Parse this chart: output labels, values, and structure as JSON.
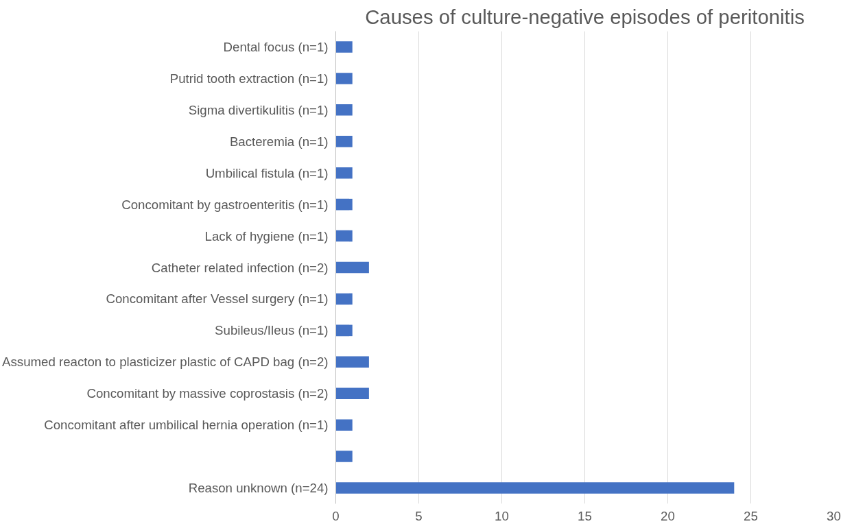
{
  "chart_data": {
    "type": "bar",
    "orientation": "horizontal",
    "title": "Causes of culture-negative episodes of peritonitis",
    "categories": [
      "Dental focus (n=1)",
      "Putrid tooth extraction (n=1)",
      "Sigma divertikulitis (n=1)",
      "Bacteremia (n=1)",
      "Umbilical fistula (n=1)",
      "Concomitant by gastroenteritis (n=1)",
      "Lack of hygiene (n=1)",
      "Catheter related infection (n=2)",
      "Concomitant after Vessel surgery (n=1)",
      "Subileus/Ileus (n=1)",
      "Assumed reacton to plasticizer plastic of CAPD bag (n=2)",
      "Concomitant by massive coprostasis (n=2)",
      "Concomitant after umbilical hernia operation (n=1)",
      null,
      "Reason unknown (n=24)"
    ],
    "values": [
      1,
      1,
      1,
      1,
      1,
      1,
      1,
      2,
      1,
      1,
      2,
      2,
      1,
      1,
      24
    ],
    "color": "#4472c4",
    "xlim": [
      0,
      30
    ],
    "xticks": [
      0,
      5,
      10,
      15,
      20,
      25,
      30
    ],
    "grid": "x"
  }
}
